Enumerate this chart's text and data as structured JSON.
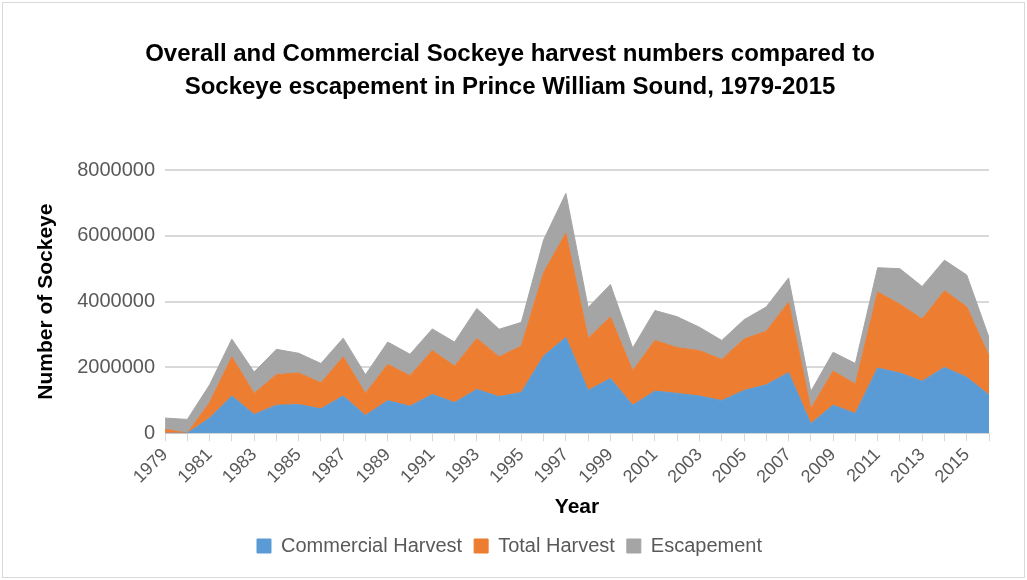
{
  "chart_data": {
    "type": "area",
    "stacked": true,
    "title": "Overall and Commercial Sockeye harvest numbers  compared to Sockeye escapement in Prince William Sound, 1979-2015",
    "xlabel": "Year",
    "ylabel": "Number of Sockeye",
    "categories": [
      "1979",
      null,
      "1981",
      null,
      "1983",
      null,
      "1985",
      null,
      "1987",
      null,
      "1989",
      null,
      "1991",
      null,
      "1993",
      null,
      "1995",
      null,
      "1997",
      null,
      "1999",
      null,
      "2001",
      null,
      "2003",
      null,
      "2005",
      null,
      "2007",
      null,
      "2009",
      null,
      "2011",
      null,
      "2013",
      null,
      "2015",
      null
    ],
    "series": [
      {
        "name": "Commercial Harvest",
        "color": "#5b9bd5",
        "values": [
          0,
          0,
          460000,
          1130000,
          570000,
          850000,
          870000,
          740000,
          1130000,
          540000,
          990000,
          820000,
          1180000,
          930000,
          1330000,
          1110000,
          1240000,
          2350000,
          2910000,
          1300000,
          1660000,
          850000,
          1280000,
          1210000,
          1130000,
          990000,
          1300000,
          1470000,
          1840000,
          290000,
          850000,
          600000,
          1980000,
          1830000,
          1580000,
          2000000,
          1700000,
          1160000
        ]
      },
      {
        "name": "Total Harvest",
        "color": "#ed7d31",
        "values": [
          120000,
          0,
          470000,
          1190000,
          640000,
          930000,
          960000,
          790000,
          1190000,
          670000,
          1100000,
          930000,
          1330000,
          1110000,
          1550000,
          1210000,
          1410000,
          2530000,
          3170000,
          1590000,
          1870000,
          1050000,
          1540000,
          1390000,
          1380000,
          1250000,
          1560000,
          1630000,
          2140000,
          450000,
          1040000,
          890000,
          2310000,
          2090000,
          1890000,
          2330000,
          2140000,
          1180000
        ]
      },
      {
        "name": "Escapement",
        "color": "#a5a5a5",
        "values": [
          340000,
          420000,
          540000,
          540000,
          650000,
          770000,
          600000,
          590000,
          570000,
          570000,
          680000,
          650000,
          660000,
          730000,
          910000,
          840000,
          720000,
          1000000,
          1210000,
          930000,
          990000,
          690000,
          910000,
          940000,
          710000,
          580000,
          590000,
          740000,
          740000,
          530000,
          570000,
          630000,
          740000,
          1080000,
          990000,
          930000,
          970000,
          570000
        ]
      }
    ],
    "ylim": [
      0,
      8000000
    ],
    "yticks": [
      0,
      2000000,
      4000000,
      6000000,
      8000000
    ],
    "grid": "y",
    "legend": "bottom"
  }
}
